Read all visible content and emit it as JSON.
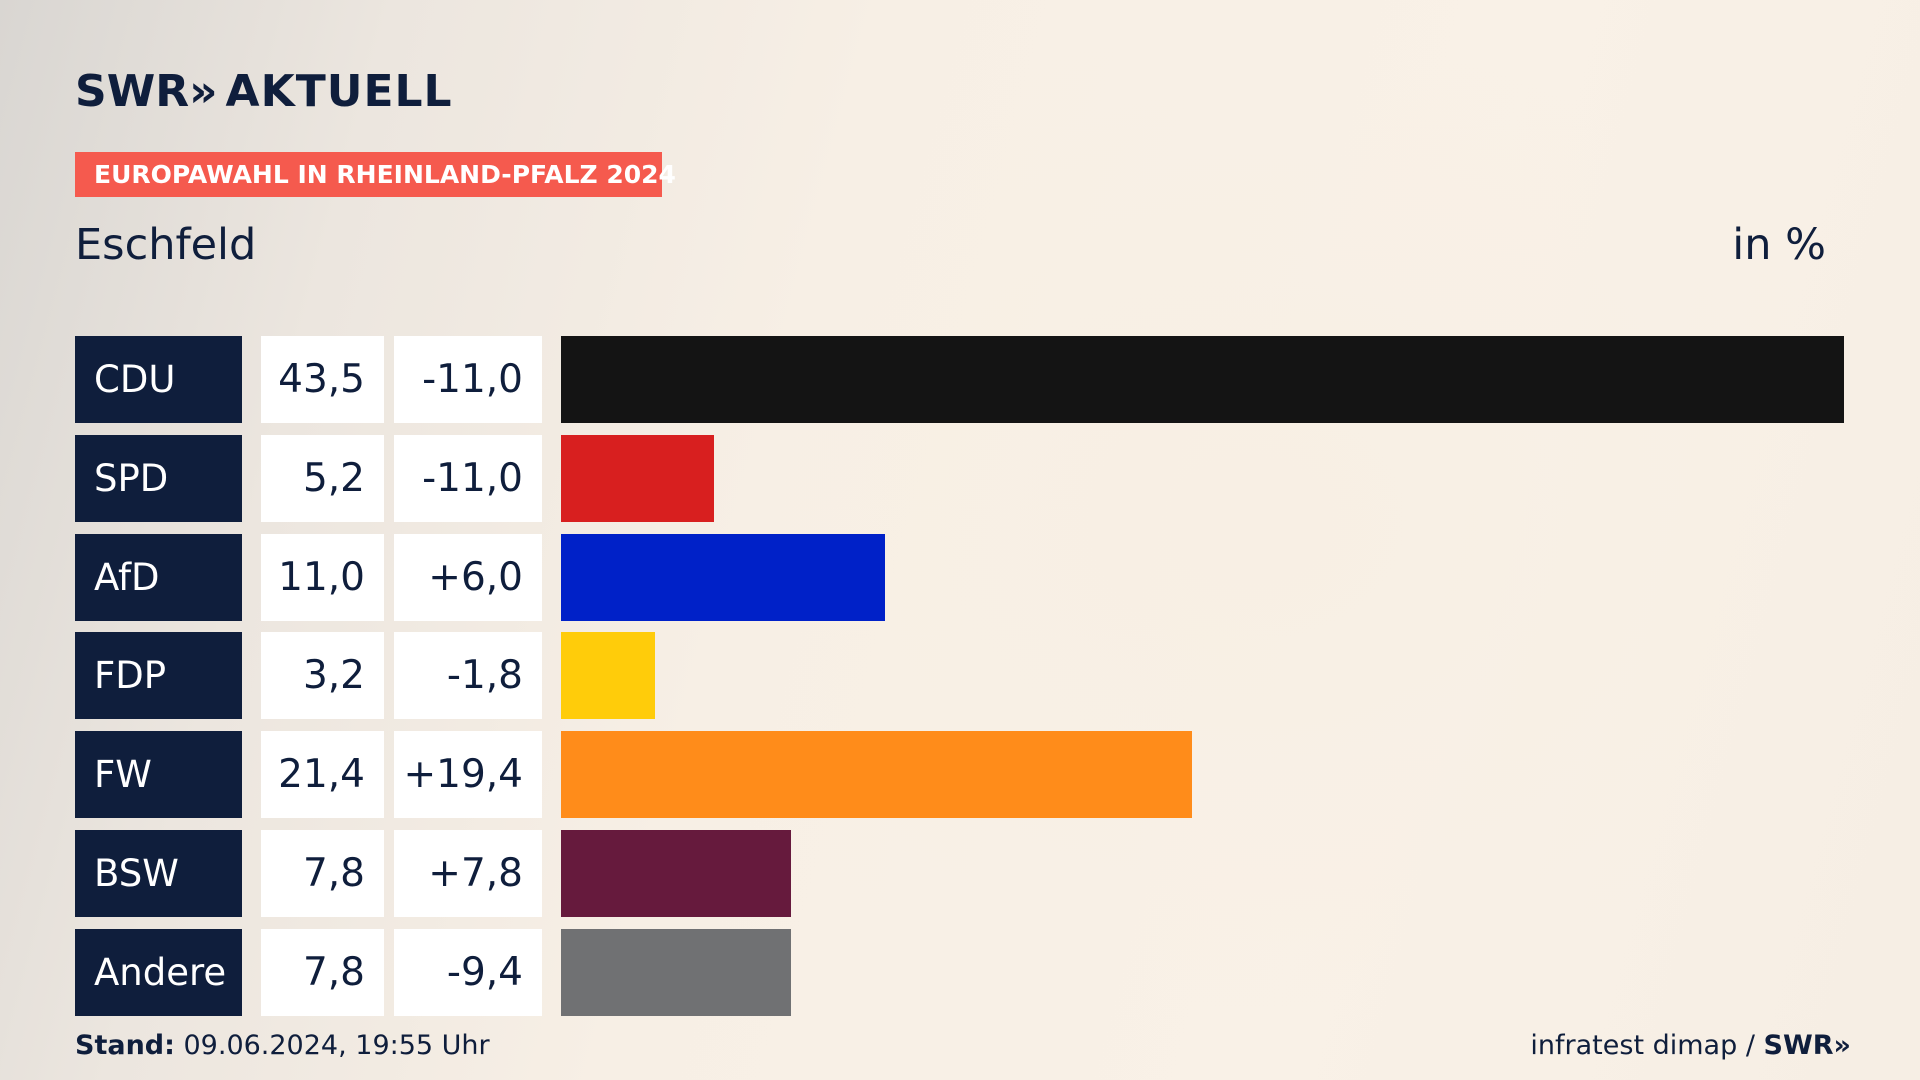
{
  "header": {
    "logo_text": "SWR",
    "logo_chevron": "»",
    "logo_suffix": "AKTUELL",
    "badge": "EUROPAWAHL IN RHEINLAND-PFALZ 2024",
    "place": "Eschfeld",
    "unit": "in %"
  },
  "colors": {
    "navy": "#0f1e3c",
    "badge": "#f55a4e"
  },
  "chart_data": {
    "type": "bar",
    "orientation": "horizontal",
    "title": "",
    "xlim": [
      0,
      43.5
    ],
    "categories": [
      "CDU",
      "SPD",
      "AfD",
      "FDP",
      "FW",
      "BSW",
      "Andere"
    ],
    "values": [
      43.5,
      5.2,
      11.0,
      3.2,
      21.4,
      7.8,
      7.8
    ],
    "value_labels": [
      "43,5",
      "5,2",
      "11,0",
      "3,2",
      "21,4",
      "7,8",
      "7,8"
    ],
    "diff_labels": [
      "-11,0",
      "-11,0",
      "+6,0",
      "-1,8",
      "+19,4",
      "+7,8",
      "-9,4"
    ],
    "bar_colors": [
      "#141414",
      "#d81f1f",
      "#0021c8",
      "#ffcc0a",
      "#ff8c1a",
      "#661a3d",
      "#707173"
    ]
  },
  "footer": {
    "stand_label": "Stand:",
    "stand_value": " 09.06.2024, 19:55 Uhr",
    "source": "infratest dimap / ",
    "brand": "SWR",
    "brand_chevron": "»"
  }
}
